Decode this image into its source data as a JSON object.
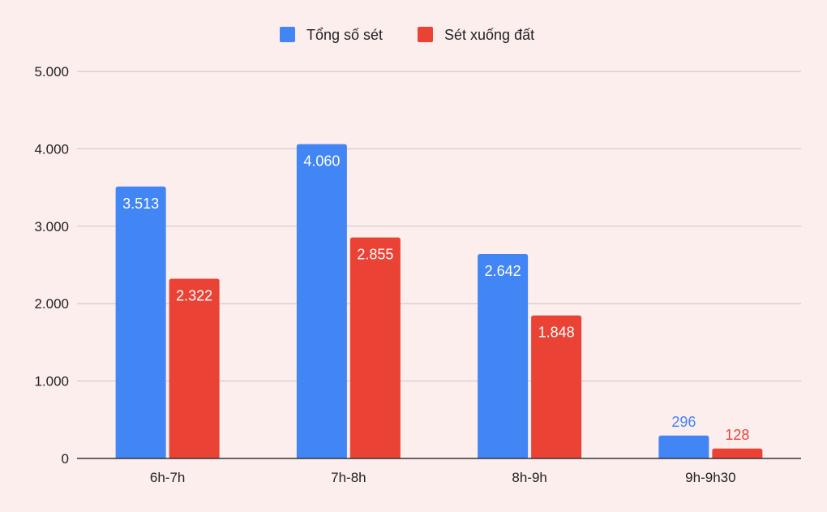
{
  "chart_data": {
    "type": "bar",
    "categories": [
      "6h-7h",
      "7h-8h",
      "8h-9h",
      "9h-9h30"
    ],
    "series": [
      {
        "name": "Tổng số sét",
        "color": "#4285f4",
        "values": [
          3513,
          4060,
          2642,
          296
        ],
        "labels": [
          "3.513",
          "4.060",
          "2.642",
          "296"
        ]
      },
      {
        "name": "Sét xuống đất",
        "color": "#ea4335",
        "values": [
          2322,
          2855,
          1848,
          128
        ],
        "labels": [
          "2.322",
          "2.855",
          "1.848",
          "128"
        ]
      }
    ],
    "y_ticks": [
      0,
      1000,
      2000,
      3000,
      4000,
      5000
    ],
    "y_tick_labels": [
      "0",
      "1.000",
      "2.000",
      "3.000",
      "4.000",
      "5.000"
    ],
    "ylim": [
      0,
      5000
    ],
    "grid": true,
    "legend_position": "top-center",
    "background": "#fdeeee"
  }
}
